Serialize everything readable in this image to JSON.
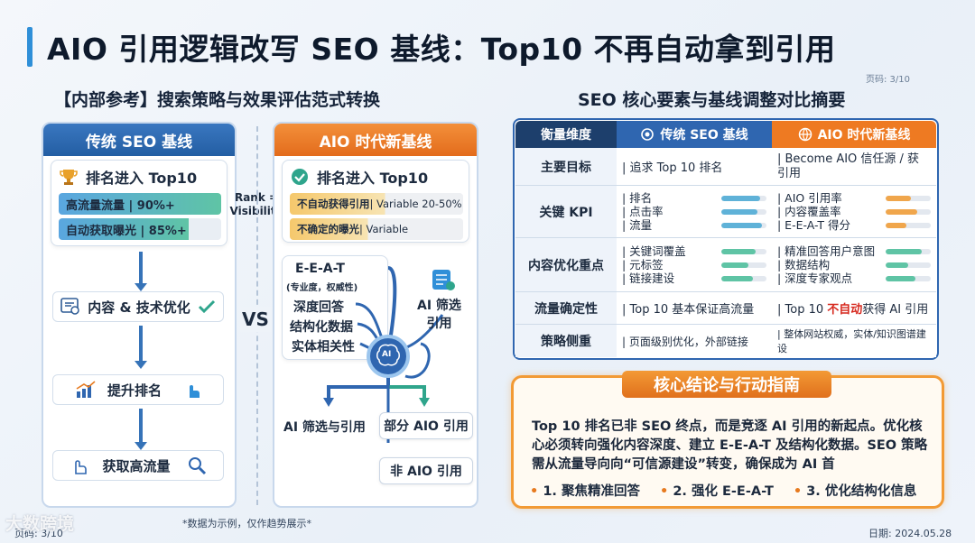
{
  "title": "AIO 引用逻辑改写 SEO 基线：Top10 不再自动拿到引用",
  "page_top": "页码: 3/10",
  "left_subtitle": "【内部参考】搜索策略与效果评估范式转换",
  "right_subtitle": "SEO 核心要素与基线调整对比摘要",
  "traditional": {
    "header": "传统 SEO 基线",
    "rank_title": "排名进入 Top10",
    "bar1": "高流量流量 | 90%+",
    "bar2": "自动获取曝光 | 85%+",
    "step1": "内容 & 技术优化",
    "step2": "提升排名",
    "step3": "获取高流量"
  },
  "middle": {
    "rank_eq": "Rank =",
    "visibility": "Visibility",
    "vs": "VS"
  },
  "aio": {
    "header": "AIO 时代新基线",
    "rank_title": "排名进入 Top10",
    "bar1_bold": "不自动获得引用",
    "bar1_rest": " | Variable 20-50%",
    "bar2_bold": "不确定的曝光",
    "bar2_rest": " | Variable",
    "eeat": "E-E-A-T",
    "eeat_sub": "(专业度，权威性)",
    "f1": "深度回答",
    "f2": "结构化数据",
    "f3": "实体相关性",
    "ai_filter": "AI 筛选",
    "ai_filter2": "引用",
    "ai_chip": "AI",
    "out1": "AI 筛选与引用",
    "out2": "部分 AIO 引用",
    "out3": "非 AIO 引用"
  },
  "table": {
    "headers": [
      "衡量维度",
      "传统 SEO 基线",
      "AIO 时代新基线"
    ],
    "rows": [
      {
        "dim": "主要目标",
        "trad": "| 追求 Top 10 排名",
        "aio": "| Become AIO 信任源 / 获引用"
      },
      {
        "dim": "关键 KPI",
        "trad_items": [
          "| 排名",
          "| 点击率",
          "| 流量"
        ],
        "aio_items": [
          "| AIO 引用率",
          "| 内容覆盖率",
          "| E-E-A-T 得分"
        ]
      },
      {
        "dim": "内容优化重点",
        "trad_items": [
          "| 关键词覆盖",
          "| 元标签",
          "| 链接建设"
        ],
        "aio_items": [
          "| 精准回答用户意图",
          "| 数据结构",
          "| 深度专家观点"
        ]
      },
      {
        "dim": "流量确定性",
        "trad": "| Top 10 基本保证高流量",
        "aio_a": "| Top 10 ",
        "aio_red": "不自动",
        "aio_b": "获得 AI 引用"
      },
      {
        "dim": "策略侧重",
        "trad": "| 页面级别优化，外部链接",
        "aio": "| 整体网站权威，实体/知识图谱建设"
      }
    ]
  },
  "conclusion": {
    "header": "核心结论与行动指南",
    "text": "Top 10 排名已非 SEO 终点，而是竞逐 AI 引用的新起点。优化核心必须转向强化内容深度、建立 E-E-A-T 及结构化数据。SEO 策略需从流量导向向“可信源建设”转变，确保成为 AI 首",
    "b1": "1. 聚焦精准回答",
    "b2": "2. 强化 E-E-A-T",
    "b3": "3. 优化结构化信息"
  },
  "footer": {
    "note": "*数据为示例，仅作趋势展示*",
    "date": "日期:   2024.05.28",
    "page": "页码:  3/10",
    "watermark": "大数跨境"
  },
  "colors": {
    "blue": "#2f66b0",
    "orange": "#ee7a22",
    "accent": "#2f8fd8"
  }
}
